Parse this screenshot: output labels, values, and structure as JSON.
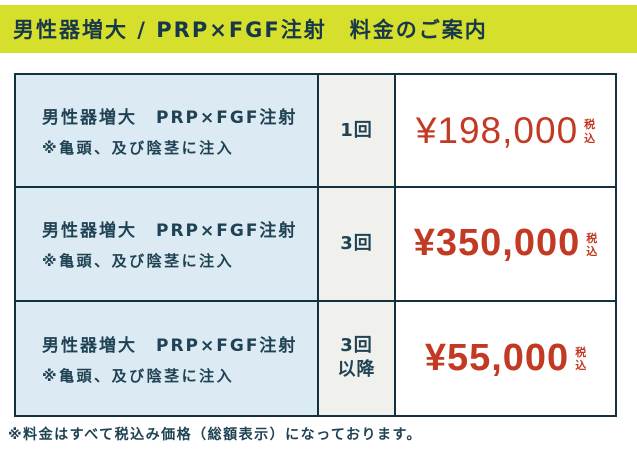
{
  "header": {
    "title": "男性器増大 / PRP×FGF注射　料金のご案内"
  },
  "table": {
    "rows": [
      {
        "service": "男性器増大　PRP×FGF注射",
        "note": "※亀頭、及び陰茎に注入",
        "frequency_line1": "1回",
        "frequency_line2": "",
        "price": "¥198,000",
        "tax_label": "税込"
      },
      {
        "service": "男性器増大　PRP×FGF注射",
        "note": "※亀頭、及び陰茎に注入",
        "frequency_line1": "3回",
        "frequency_line2": "",
        "price": "¥350,000",
        "tax_label": "税込"
      },
      {
        "service": "男性器増大　PRP×FGF注射",
        "note": "※亀頭、及び陰茎に注入",
        "frequency_line1": "3回",
        "frequency_line2": "以降",
        "price": "¥55,000",
        "tax_label": "税込"
      }
    ]
  },
  "footer": {
    "note": "※料金はすべて税込み価格（総額表示）になっております。"
  },
  "colors": {
    "accent_yellow": "#d6df2b",
    "dark_teal_text": "#1f4254",
    "table_border": "#143140",
    "price_red": "#c23a23",
    "service_cell_blue": "#dcebf3",
    "frequency_cell_gray": "#f0f1ed"
  }
}
